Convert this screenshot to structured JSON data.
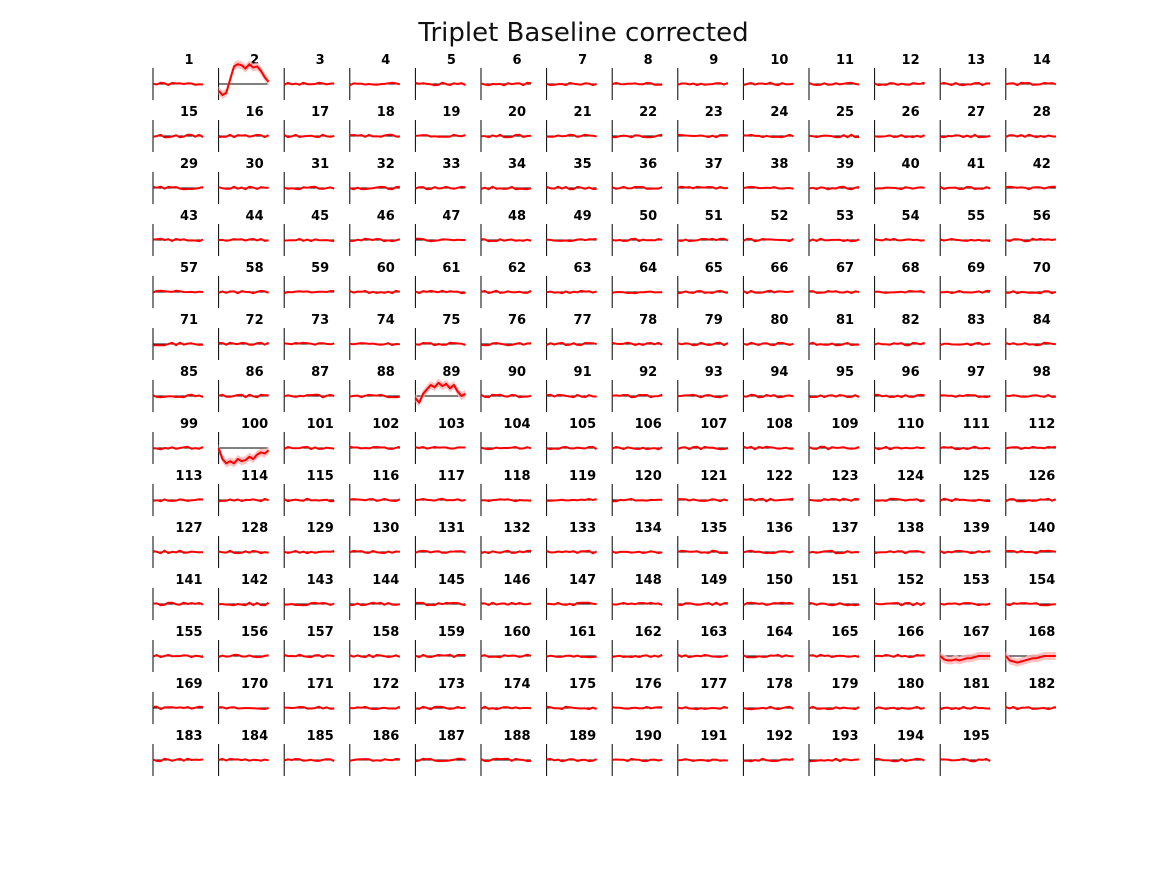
{
  "window": {
    "title": "Triplet Baseline corrected"
  },
  "chart_data": {
    "type": "line",
    "title": "Triplet Baseline corrected",
    "panel_count": 195,
    "columns": 14,
    "grid": false,
    "colors": {
      "mean": "#ff0000",
      "spread": "#ffb3b3",
      "baseline": "#000000",
      "axis": "#000000"
    },
    "panels": {
      "count": 195,
      "labels": [
        "1",
        "2",
        "3",
        "4",
        "5",
        "6",
        "7",
        "8",
        "9",
        "10",
        "11",
        "12",
        "13",
        "14",
        "15",
        "16",
        "17",
        "18",
        "19",
        "20",
        "21",
        "22",
        "23",
        "24",
        "25",
        "26",
        "27",
        "28",
        "29",
        "30",
        "31",
        "32",
        "33",
        "34",
        "35",
        "36",
        "37",
        "38",
        "39",
        "40",
        "41",
        "42",
        "43",
        "44",
        "45",
        "46",
        "47",
        "48",
        "49",
        "50",
        "51",
        "52",
        "53",
        "54",
        "55",
        "56",
        "57",
        "58",
        "59",
        "60",
        "61",
        "62",
        "63",
        "64",
        "65",
        "66",
        "67",
        "68",
        "69",
        "70",
        "71",
        "72",
        "73",
        "74",
        "75",
        "76",
        "77",
        "78",
        "79",
        "80",
        "81",
        "82",
        "83",
        "84",
        "85",
        "86",
        "87",
        "88",
        "89",
        "90",
        "91",
        "92",
        "93",
        "94",
        "95",
        "96",
        "97",
        "98",
        "99",
        "100",
        "101",
        "102",
        "103",
        "104",
        "105",
        "106",
        "107",
        "108",
        "109",
        "110",
        "111",
        "112",
        "113",
        "114",
        "115",
        "116",
        "117",
        "118",
        "119",
        "120",
        "121",
        "122",
        "123",
        "124",
        "125",
        "126",
        "127",
        "128",
        "129",
        "130",
        "131",
        "132",
        "133",
        "134",
        "135",
        "136",
        "137",
        "138",
        "139",
        "140",
        "141",
        "142",
        "143",
        "144",
        "145",
        "146",
        "147",
        "148",
        "149",
        "150",
        "151",
        "152",
        "153",
        "154",
        "155",
        "156",
        "157",
        "158",
        "159",
        "160",
        "161",
        "162",
        "163",
        "164",
        "165",
        "166",
        "167",
        "168",
        "169",
        "170",
        "171",
        "172",
        "173",
        "174",
        "175",
        "176",
        "177",
        "178",
        "179",
        "180",
        "181",
        "182",
        "183",
        "184",
        "185",
        "186",
        "187",
        "188",
        "189",
        "190",
        "191",
        "192",
        "193",
        "194",
        "195"
      ]
    },
    "series_highlights": [
      {
        "panel": 2,
        "y": [
          -0.3,
          -0.5,
          -0.4,
          0.2,
          0.8,
          0.9,
          0.85,
          0.7,
          0.9,
          0.75,
          0.8,
          0.6,
          0.3,
          0.1
        ]
      },
      {
        "panel": 89,
        "y": [
          -0.1,
          -0.3,
          0.1,
          0.3,
          0.5,
          0.4,
          0.6,
          0.45,
          0.55,
          0.35,
          0.5,
          0.2,
          0.0,
          0.1
        ]
      },
      {
        "panel": 100,
        "y": [
          0.0,
          -0.5,
          -0.7,
          -0.6,
          -0.7,
          -0.5,
          -0.6,
          -0.55,
          -0.4,
          -0.5,
          -0.3,
          -0.2,
          -0.25,
          -0.1
        ]
      },
      {
        "panel": 167,
        "y": [
          0.0,
          -0.15,
          -0.2,
          -0.2,
          -0.15,
          -0.2,
          -0.15,
          -0.1,
          -0.1,
          -0.05,
          0.0,
          0.0,
          0.0,
          0.0
        ]
      },
      {
        "panel": 168,
        "y": [
          0.0,
          -0.2,
          -0.25,
          -0.3,
          -0.25,
          -0.2,
          -0.15,
          -0.1,
          -0.1,
          -0.05,
          0.0,
          0.0,
          0.0,
          0.0
        ]
      }
    ],
    "small_noise_amplitude": 0.06,
    "ylim": [
      -1,
      1
    ]
  }
}
